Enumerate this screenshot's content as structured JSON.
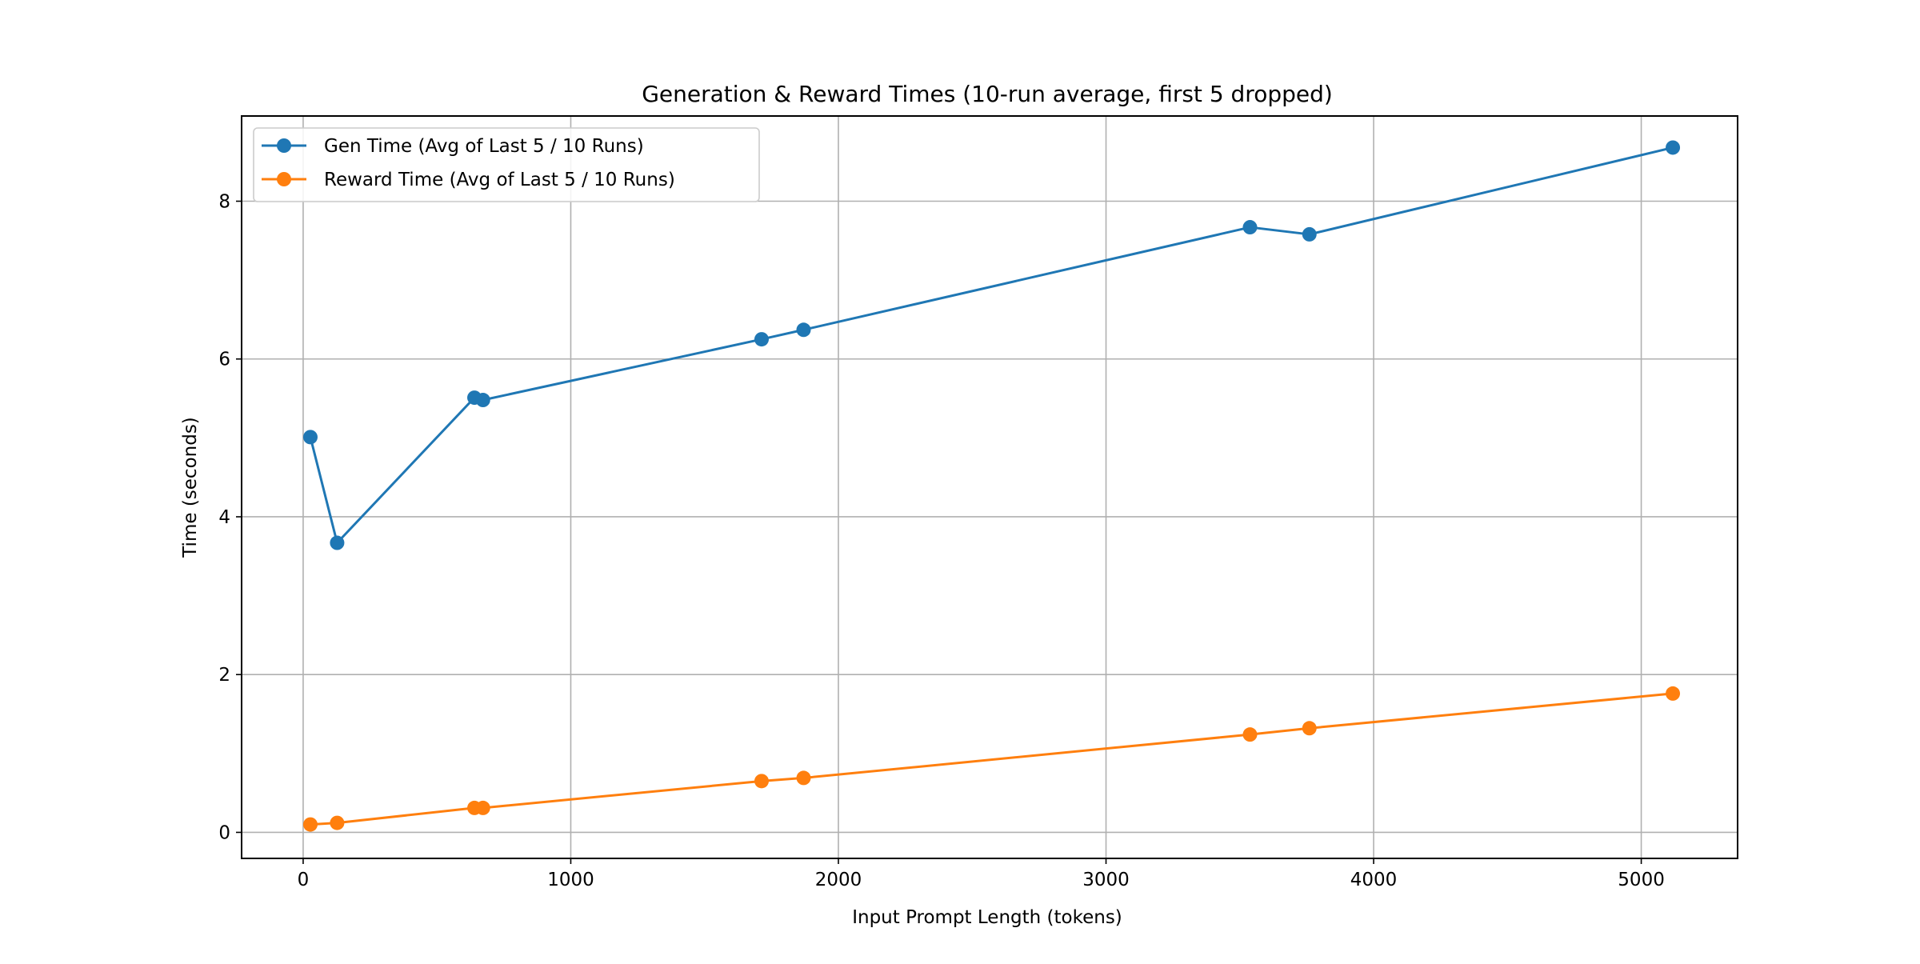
{
  "chart_data": {
    "type": "line",
    "title": "Generation & Reward Times (10-run average, first 5 dropped)",
    "xlabel": "Input Prompt Length (tokens)",
    "ylabel": "Time (seconds)",
    "xlim": [
      -230,
      5360
    ],
    "ylim": [
      -0.33,
      9.08
    ],
    "xticks": [
      0,
      1000,
      2000,
      3000,
      4000,
      5000
    ],
    "xtick_labels": [
      "0",
      "1000",
      "2000",
      "3000",
      "4000",
      "5000"
    ],
    "yticks": [
      0,
      2,
      4,
      6,
      8
    ],
    "ytick_labels": [
      "0",
      "2",
      "4",
      "6",
      "8"
    ],
    "grid": true,
    "legend_position": "top-left",
    "x": [
      27,
      127,
      640,
      672,
      1713,
      1870,
      3538,
      3760,
      5118
    ],
    "series": [
      {
        "name": "Gen Time (Avg of Last 5 / 10 Runs)",
        "color": "#1f77b4",
        "values": [
          5.01,
          3.67,
          5.51,
          5.48,
          6.25,
          6.37,
          7.67,
          7.58,
          8.68
        ]
      },
      {
        "name": "Reward Time (Avg of Last 5 / 10 Runs)",
        "color": "#ff7f0e",
        "values": [
          0.1,
          0.12,
          0.31,
          0.31,
          0.65,
          0.69,
          1.24,
          1.32,
          1.76
        ]
      }
    ]
  }
}
